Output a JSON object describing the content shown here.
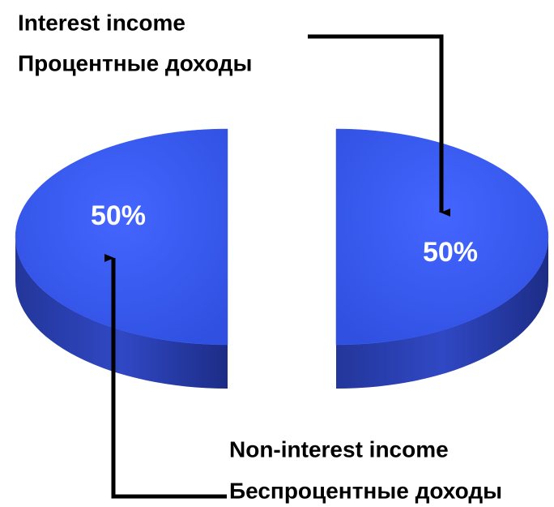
{
  "chart_data": {
    "type": "pie",
    "categories": [
      "Interest income",
      "Non-interest income"
    ],
    "category_translations": [
      "Процентные доходы",
      "Беспроцентные доходы"
    ],
    "values": [
      50,
      50
    ],
    "value_labels": [
      "50%",
      "50%"
    ],
    "color": "#3658ee"
  }
}
